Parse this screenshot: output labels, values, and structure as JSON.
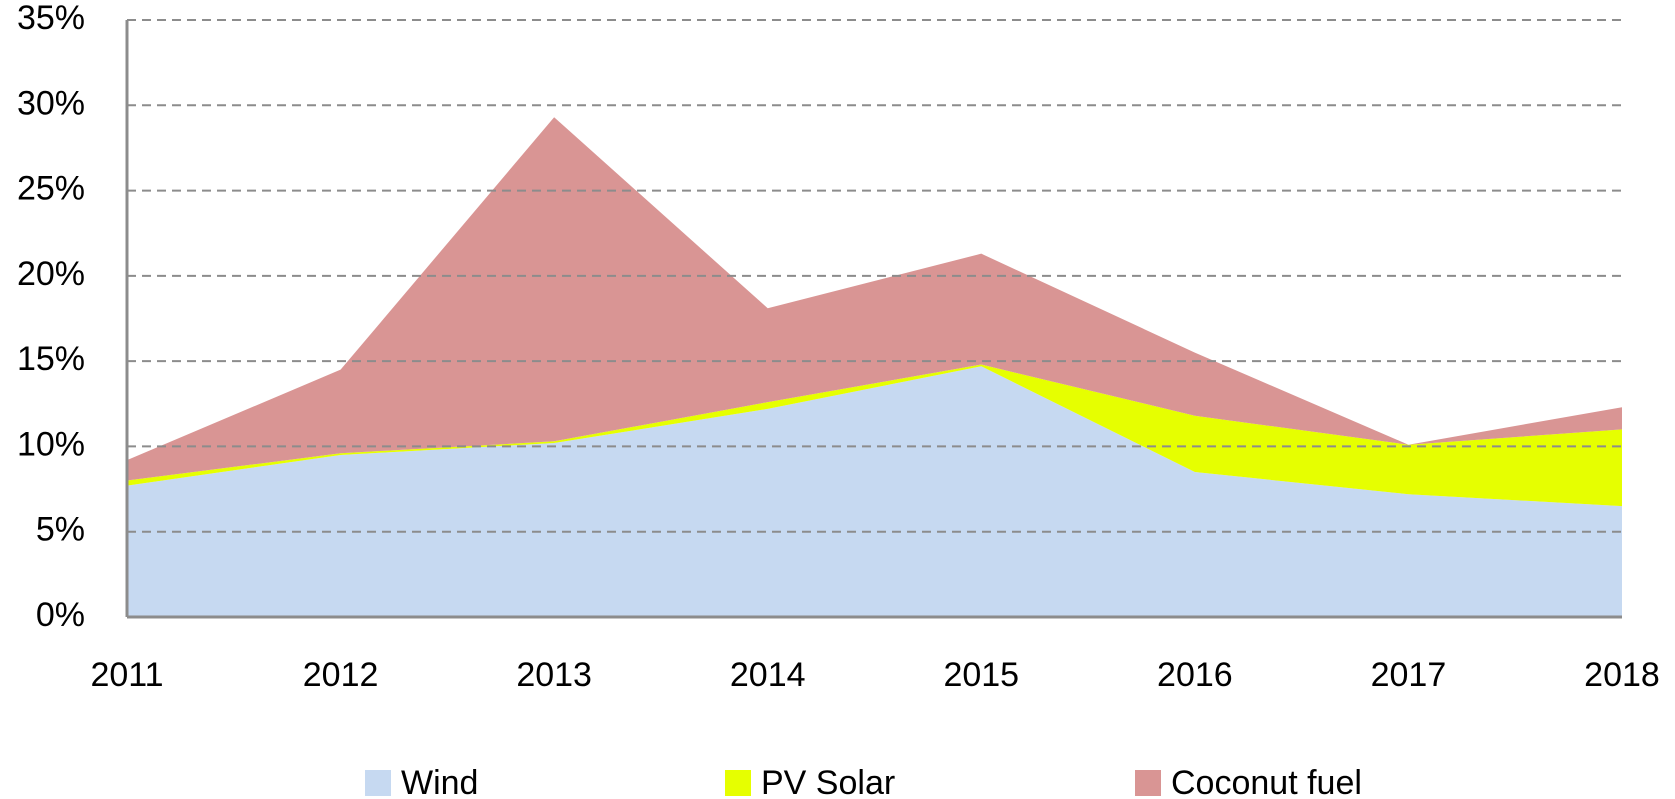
{
  "chart_data": {
    "type": "stacked_area",
    "categories": [
      "2011",
      "2012",
      "2013",
      "2014",
      "2015",
      "2016",
      "2017",
      "2018"
    ],
    "series": [
      {
        "name": "Wind",
        "color": "#c6d9f1",
        "values": [
          7.7,
          9.5,
          10.2,
          12.2,
          14.7,
          8.5,
          7.2,
          6.5
        ]
      },
      {
        "name": "PV Solar",
        "color": "#e6ff00",
        "values": [
          0.3,
          0.1,
          0.1,
          0.4,
          0.1,
          3.3,
          2.9,
          4.5
        ]
      },
      {
        "name": "Coconut fuel",
        "color": "#d99594",
        "values": [
          1.2,
          4.9,
          19.0,
          5.5,
          6.5,
          3.7,
          0.0,
          1.3
        ]
      }
    ],
    "ylim": [
      0,
      35
    ],
    "yticks": [
      {
        "value": 0,
        "label": "0%"
      },
      {
        "value": 5,
        "label": "5%"
      },
      {
        "value": 10,
        "label": "10%"
      },
      {
        "value": 15,
        "label": "15%"
      },
      {
        "value": 20,
        "label": "20%"
      },
      {
        "value": 25,
        "label": "25%"
      },
      {
        "value": 30,
        "label": "30%"
      },
      {
        "value": 35,
        "label": "35%"
      }
    ],
    "grid": true,
    "legend": "bottom"
  }
}
